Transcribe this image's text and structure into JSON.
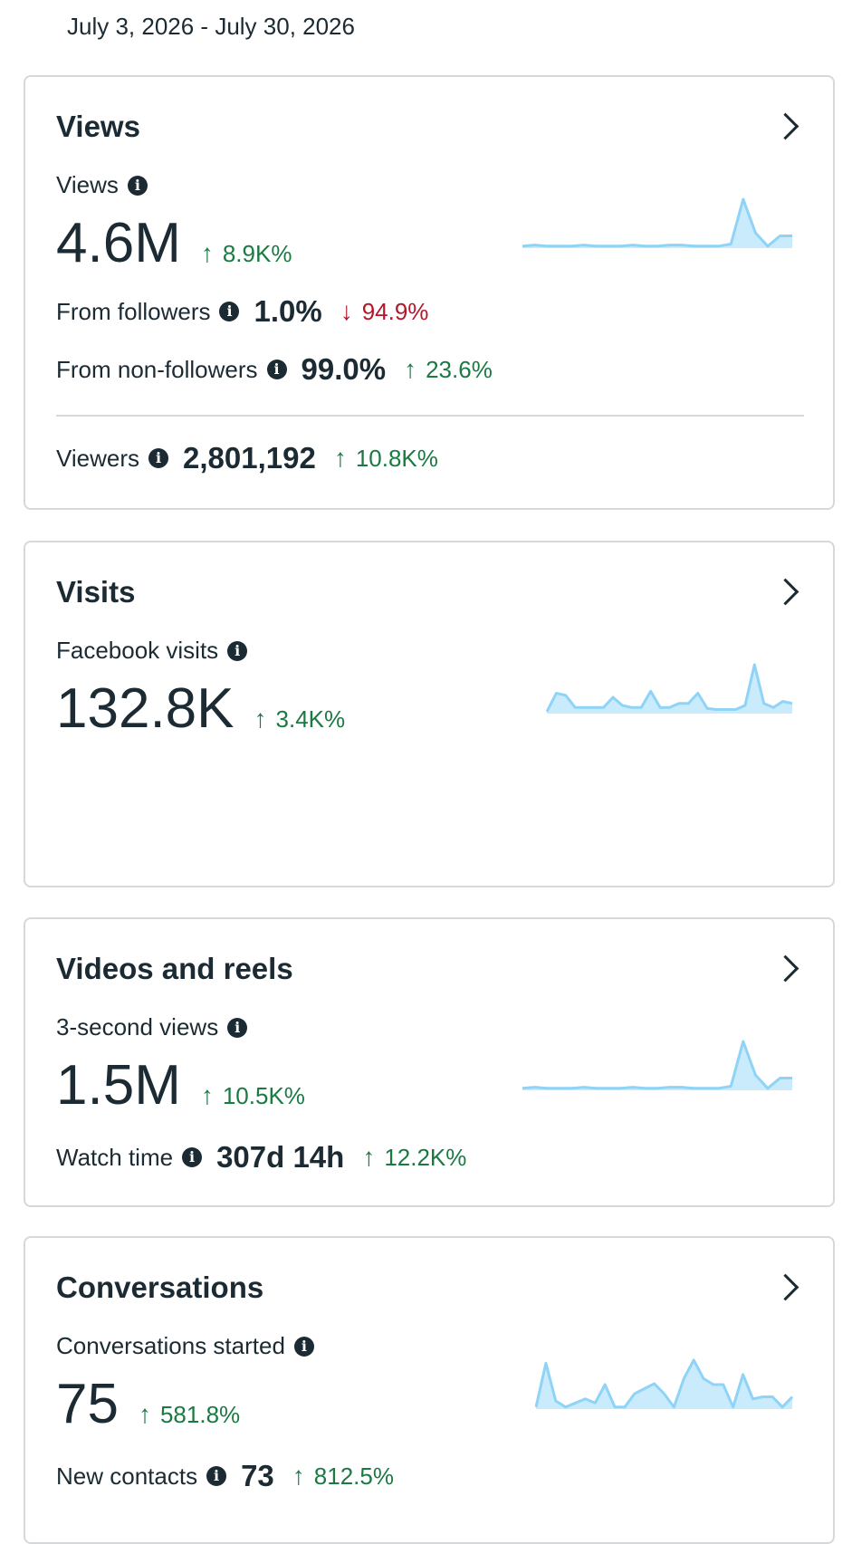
{
  "date_range": "July 3, 2026 - July 30, 2026",
  "colors": {
    "positive": "#1b7a43",
    "negative": "#b5162b",
    "spark_line": "#8fd3f7",
    "spark_fill": "#c9ebfc"
  },
  "icons": {
    "info": "info-icon",
    "arrow_up": "arrow-up-icon",
    "arrow_down": "arrow-down-icon",
    "chevron": "chevron-right-icon"
  },
  "views": {
    "title": "Views",
    "metric_label": "Views",
    "value": "4.6M",
    "delta": "8.9K%",
    "from_followers": {
      "label": "From followers",
      "value": "1.0%",
      "delta": "94.9%"
    },
    "from_non_followers": {
      "label": "From non-followers",
      "value": "99.0%",
      "delta": "23.6%"
    },
    "viewers": {
      "label": "Viewers",
      "value": "2,801,192",
      "delta": "10.8K%"
    }
  },
  "visits": {
    "title": "Visits",
    "metric_label": "Facebook visits",
    "value": "132.8K",
    "delta": "3.4K%"
  },
  "videos": {
    "title": "Videos and reels",
    "metric_label": "3-second views",
    "value": "1.5M",
    "delta": "10.5K%",
    "watch_time": {
      "label": "Watch time",
      "value": "307d 14h",
      "delta": "12.2K%"
    }
  },
  "conversations": {
    "title": "Conversations",
    "metric_label": "Conversations started",
    "value": "75",
    "delta": "581.8%",
    "new_contacts": {
      "label": "New contacts",
      "value": "73",
      "delta": "812.5%"
    }
  },
  "chart_data": [
    {
      "type": "area",
      "name": "views-sparkline",
      "values": [
        2,
        3,
        2,
        2,
        2,
        3,
        2,
        2,
        2,
        3,
        2,
        2,
        3,
        3,
        2,
        2,
        2,
        4,
        48,
        15,
        2,
        12,
        12
      ]
    },
    {
      "type": "area",
      "name": "visits-sparkline",
      "values": [
        2,
        20,
        18,
        6,
        6,
        6,
        6,
        16,
        8,
        6,
        6,
        22,
        6,
        6,
        10,
        10,
        20,
        5,
        4,
        4,
        4,
        8,
        48,
        10,
        6,
        12,
        10
      ]
    },
    {
      "type": "area",
      "name": "videos-sparkline",
      "values": [
        2,
        3,
        2,
        2,
        2,
        3,
        2,
        2,
        2,
        3,
        2,
        2,
        3,
        3,
        2,
        2,
        2,
        4,
        48,
        15,
        2,
        12,
        12
      ]
    },
    {
      "type": "area",
      "name": "conversations-sparkline",
      "values": [
        2,
        45,
        8,
        2,
        6,
        10,
        6,
        24,
        2,
        2,
        15,
        20,
        25,
        15,
        2,
        30,
        48,
        30,
        24,
        24,
        2,
        34,
        10,
        12,
        12,
        2,
        12
      ]
    }
  ]
}
